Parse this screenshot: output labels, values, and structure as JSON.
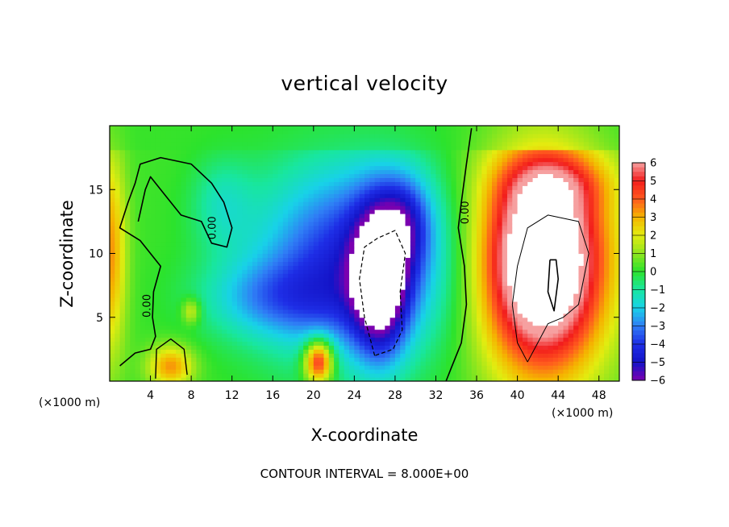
{
  "chart_data": {
    "type": "heatmap",
    "title": "vertical velocity",
    "xlabel": "X-coordinate",
    "ylabel": "Z-coordinate",
    "x_unit_label_left": "(×1000 m)",
    "x_unit_label_right": "(×1000 m)",
    "xlim": [
      0,
      50
    ],
    "ylim": [
      0,
      20
    ],
    "x_ticks": [
      4,
      8,
      12,
      16,
      20,
      24,
      28,
      32,
      36,
      40,
      44,
      48
    ],
    "y_ticks": [
      5,
      10,
      15
    ],
    "colorbar": {
      "min": -6,
      "max": 6,
      "ticks": [
        6,
        5,
        4,
        3,
        2,
        1,
        0,
        -1,
        -2,
        -3,
        -4,
        -5,
        -6
      ],
      "tick_labels": [
        "6",
        "5",
        "4",
        "3",
        "2",
        "1",
        "0",
        "−1",
        "−2",
        "−3",
        "−4",
        "−5",
        "−6"
      ]
    },
    "contour_labels": [
      {
        "text": "0.00",
        "x": 10.4,
        "z": 12.0
      },
      {
        "text": "0.00",
        "x": 4.0,
        "z": 5.9
      },
      {
        "text": "0.00",
        "x": 35.2,
        "z": 13.2
      }
    ],
    "features": [
      {
        "name": "updraft core (above scale, white)",
        "x": 42.5,
        "z": 8.5,
        "max_value": "> 6"
      },
      {
        "name": "downdraft core (below scale, white)",
        "x": 26.5,
        "z": 7.5,
        "min_value": "< -6"
      },
      {
        "name": "weak updraft",
        "x": 20.5,
        "z": 1.5,
        "value": 5
      }
    ],
    "grid": false,
    "footer": "CONTOUR INTERVAL = 8.000E+00"
  }
}
